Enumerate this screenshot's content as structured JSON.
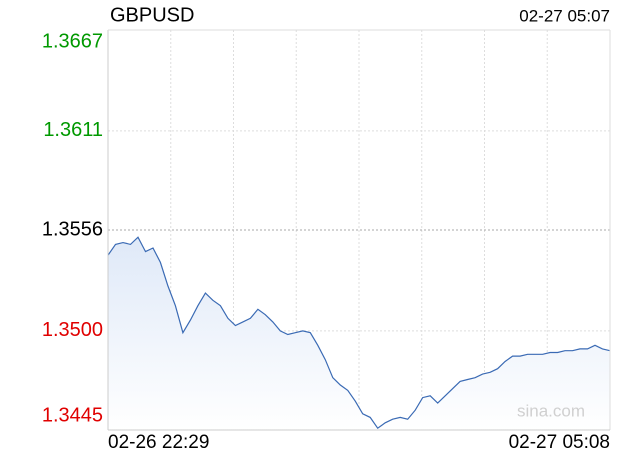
{
  "chart_data": {
    "type": "line",
    "title": "GBPUSD",
    "subtitle": "02-27 05:07",
    "watermark": "sina.com",
    "categories": [
      "02-26 22:29",
      null,
      null,
      null,
      null,
      null,
      null,
      null,
      null,
      null,
      null,
      null,
      null,
      null,
      null,
      null,
      null,
      null,
      null,
      null,
      null,
      null,
      null,
      null,
      null,
      null,
      null,
      null,
      null,
      null,
      null,
      null,
      null,
      null,
      null,
      null,
      null,
      null,
      null,
      null,
      null,
      null,
      null,
      null,
      null,
      null,
      null,
      null,
      null,
      null,
      null,
      null,
      null,
      null,
      null,
      null,
      null,
      null,
      null,
      null,
      null,
      null,
      null,
      null,
      null,
      null,
      null,
      "02-27 05:08"
    ],
    "values": [
      1.3542,
      1.3548,
      1.3549,
      1.3548,
      1.3552,
      1.3544,
      1.3546,
      1.3538,
      1.3525,
      1.3514,
      1.3499,
      1.3506,
      1.3514,
      1.3521,
      1.3517,
      1.3514,
      1.3507,
      1.3503,
      1.3505,
      1.3507,
      1.3512,
      1.3509,
      1.3505,
      1.35,
      1.3498,
      1.3499,
      1.35,
      1.3499,
      1.3492,
      1.3484,
      1.3474,
      1.347,
      1.3467,
      1.3461,
      1.3454,
      1.3452,
      1.3446,
      1.3449,
      1.3451,
      1.3452,
      1.3451,
      1.3456,
      1.3463,
      1.3464,
      1.346,
      1.3464,
      1.3468,
      1.3472,
      1.3473,
      1.3474,
      1.3476,
      1.3477,
      1.3479,
      1.3483,
      1.3486,
      1.3486,
      1.3487,
      1.3487,
      1.3487,
      1.3488,
      1.3488,
      1.3489,
      1.3489,
      1.349,
      1.349,
      1.3492,
      1.349,
      1.3489
    ],
    "color": "#3a6ab4",
    "ylim": [
      1.3445,
      1.3667
    ],
    "yticks": [
      {
        "value": 1.3445,
        "label": "1.3445"
      },
      {
        "value": 1.35,
        "label": "1.3500"
      },
      {
        "value": 1.3556,
        "label": "1.3556"
      },
      {
        "value": 1.3611,
        "label": "1.3611"
      },
      {
        "value": 1.3667,
        "label": "1.3667"
      }
    ],
    "ytick_colors": [
      "#e00000",
      "#e00000",
      "#000000",
      "#009900",
      "#009900"
    ],
    "grid": true
  }
}
